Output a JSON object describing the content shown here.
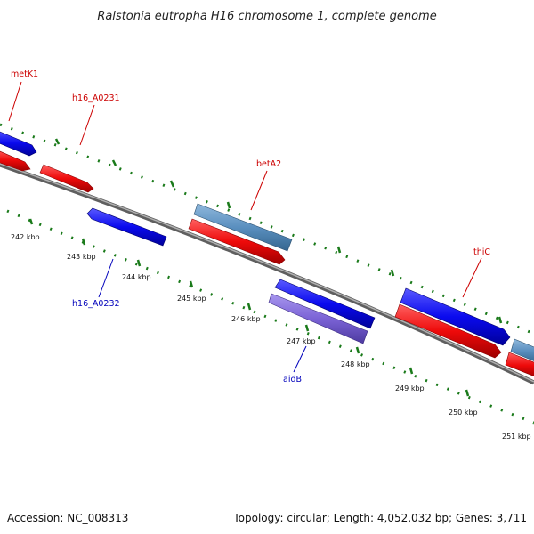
{
  "title": "Ralstonia eutropha H16 chromosome 1, complete genome",
  "footer": {
    "accession": "Accession: NC_008313",
    "summary": "Topology: circular; Length: 4,052,032 bp; Genes: 3,711"
  },
  "colors": {
    "backbone": "#888888",
    "tick": "#1a7a1a",
    "forward_label": "#cc0000",
    "reverse_label": "#0000bb",
    "gene_blue": "#0a0aee",
    "gene_red": "#ee0a0a",
    "gene_steel": "#5a8fbf",
    "gene_violet": "#7b63d6"
  },
  "ticks": [
    "242 kbp",
    "243 kbp",
    "244 kbp",
    "245 kbp",
    "246 kbp",
    "247 kbp",
    "248 kbp",
    "249 kbp",
    "250 kbp",
    "251 kbp"
  ],
  "gene_labels": [
    {
      "text": "metK1",
      "strand": "forward"
    },
    {
      "text": "h16_A0231",
      "strand": "forward"
    },
    {
      "text": "betA2",
      "strand": "forward"
    },
    {
      "text": "thiC",
      "strand": "forward"
    },
    {
      "text": "h16_A0232",
      "strand": "reverse"
    },
    {
      "text": "aidB",
      "strand": "reverse"
    }
  ]
}
